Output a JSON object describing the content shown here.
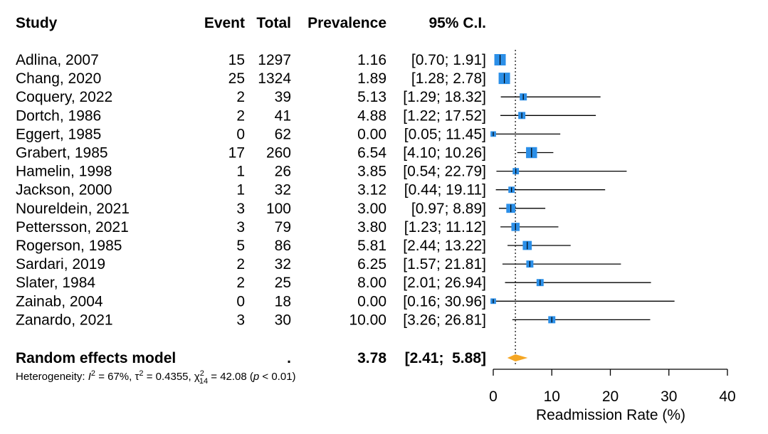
{
  "header": {
    "study": "Study",
    "event": "Event",
    "total": "Total",
    "prevalence": "Prevalence",
    "ci": "95% C.I."
  },
  "rows": [
    {
      "study": "Adlina, 2007",
      "event": "15",
      "total": "1297",
      "prevalence": "1.16",
      "ci": "[0.70;  1.91]"
    },
    {
      "study": "Chang, 2020",
      "event": "25",
      "total": "1324",
      "prevalence": "1.89",
      "ci": "[1.28;  2.78]"
    },
    {
      "study": "Coquery, 2022",
      "event": "2",
      "total": "39",
      "prevalence": "5.13",
      "ci": "[1.29; 18.32]"
    },
    {
      "study": "Dortch, 1986",
      "event": "2",
      "total": "41",
      "prevalence": "4.88",
      "ci": "[1.22; 17.52]"
    },
    {
      "study": "Eggert, 1985",
      "event": "0",
      "total": "62",
      "prevalence": "0.00",
      "ci": "[0.05; 11.45]"
    },
    {
      "study": "Grabert, 1985",
      "event": "17",
      "total": "260",
      "prevalence": "6.54",
      "ci": "[4.10; 10.26]"
    },
    {
      "study": "Hamelin, 1998",
      "event": "1",
      "total": "26",
      "prevalence": "3.85",
      "ci": "[0.54; 22.79]"
    },
    {
      "study": "Jackson, 2000",
      "event": "1",
      "total": "32",
      "prevalence": "3.12",
      "ci": "[0.44; 19.11]"
    },
    {
      "study": "Noureldein, 2021",
      "event": "3",
      "total": "100",
      "prevalence": "3.00",
      "ci": "[0.97;  8.89]"
    },
    {
      "study": "Pettersson, 2021",
      "event": "3",
      "total": "79",
      "prevalence": "3.80",
      "ci": "[1.23; 11.12]"
    },
    {
      "study": "Rogerson, 1985",
      "event": "5",
      "total": "86",
      "prevalence": "5.81",
      "ci": "[2.44; 13.22]"
    },
    {
      "study": "Sardari, 2019",
      "event": "2",
      "total": "32",
      "prevalence": "6.25",
      "ci": "[1.57; 21.81]"
    },
    {
      "study": "Slater, 1984",
      "event": "2",
      "total": "25",
      "prevalence": "8.00",
      "ci": "[2.01; 26.94]"
    },
    {
      "study": "Zainab, 2004",
      "event": "0",
      "total": "18",
      "prevalence": "0.00",
      "ci": "[0.16; 30.96]"
    },
    {
      "study": "Zanardo, 2021",
      "event": "3",
      "total": "30",
      "prevalence": "10.00",
      "ci": "[3.26; 26.81]"
    }
  ],
  "summary": {
    "label": "Random effects model",
    "dot": ".",
    "prevalence": "3.78",
    "ci": "[2.41;  5.88]"
  },
  "heterogeneity": {
    "prefix": "Heterogeneity: ",
    "i2_symbol": "I",
    "i2_value": " = 67%, ",
    "tau_symbol": "τ",
    "tau_value": " = 0.4355, ",
    "chi_symbol": "χ",
    "chi_sub": "14",
    "chi_value": " = 42.08 (",
    "p_symbol": "p",
    "p_value": " < 0.01)"
  },
  "colors": {
    "box": "#2b8fe8",
    "diamond": "#f5a623",
    "line": "#000000"
  },
  "chart_data": {
    "type": "forest",
    "xlabel": "Readmission Rate (%)",
    "xlim": [
      0,
      40
    ],
    "xticks": [
      0,
      10,
      20,
      30,
      40
    ],
    "reference_line": 3.78,
    "studies": [
      {
        "study": "Adlina, 2007",
        "estimate": 1.16,
        "lower": 0.7,
        "upper": 1.91,
        "weight": 1.0
      },
      {
        "study": "Chang, 2020",
        "estimate": 1.89,
        "lower": 1.28,
        "upper": 2.78,
        "weight": 1.0
      },
      {
        "study": "Coquery, 2022",
        "estimate": 5.13,
        "lower": 1.29,
        "upper": 18.32,
        "weight": 0.45
      },
      {
        "study": "Dortch, 1986",
        "estimate": 4.88,
        "lower": 1.22,
        "upper": 17.52,
        "weight": 0.45
      },
      {
        "study": "Eggert, 1985",
        "estimate": 0.0,
        "lower": 0.05,
        "upper": 11.45,
        "weight": 0.25
      },
      {
        "study": "Grabert, 1985",
        "estimate": 6.54,
        "lower": 4.1,
        "upper": 10.26,
        "weight": 0.95
      },
      {
        "study": "Hamelin, 1998",
        "estimate": 3.85,
        "lower": 0.54,
        "upper": 22.79,
        "weight": 0.35
      },
      {
        "study": "Jackson, 2000",
        "estimate": 3.12,
        "lower": 0.44,
        "upper": 19.11,
        "weight": 0.35
      },
      {
        "study": "Noureldein, 2021",
        "estimate": 3.0,
        "lower": 0.97,
        "upper": 8.89,
        "weight": 0.7
      },
      {
        "study": "Pettersson, 2021",
        "estimate": 3.8,
        "lower": 1.23,
        "upper": 11.12,
        "weight": 0.6
      },
      {
        "study": "Rogerson, 1985",
        "estimate": 5.81,
        "lower": 2.44,
        "upper": 13.22,
        "weight": 0.7
      },
      {
        "study": "Sardari, 2019",
        "estimate": 6.25,
        "lower": 1.57,
        "upper": 21.81,
        "weight": 0.45
      },
      {
        "study": "Slater, 1984",
        "estimate": 8.0,
        "lower": 2.01,
        "upper": 26.94,
        "weight": 0.45
      },
      {
        "study": "Zainab, 2004",
        "estimate": 0.0,
        "lower": 0.16,
        "upper": 30.96,
        "weight": 0.25
      },
      {
        "study": "Zanardo, 2021",
        "estimate": 10.0,
        "lower": 3.26,
        "upper": 26.81,
        "weight": 0.45
      }
    ],
    "pooled": {
      "estimate": 3.78,
      "lower": 2.41,
      "upper": 5.88
    }
  }
}
